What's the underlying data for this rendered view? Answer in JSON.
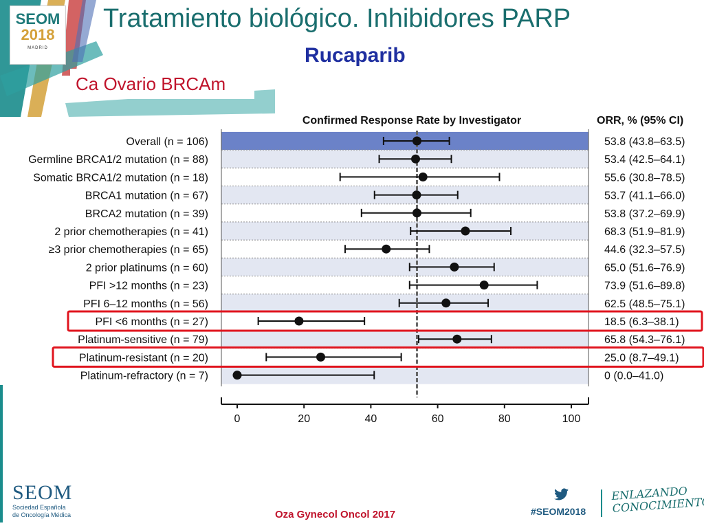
{
  "slide": {
    "title": "Tratamiento biológico. Inhibidores PARP",
    "subtitle": "Rucaparib",
    "tag": "Ca Ovario BRCAm",
    "citation": "Oza Gynecol Oncol 2017"
  },
  "logo": {
    "line1": "SEOM",
    "line2": "2018",
    "city": "MADRID"
  },
  "footer": {
    "org_short": "SEOM",
    "org_line1": "Sociedad Española",
    "org_line2": "de Oncología Médica",
    "hashtag": "#SEOM2018",
    "slogan_line1": "ENLAZANDO",
    "slogan_line2": "CONOCIMIENTO",
    "twitter_icon": "twitter-bird-icon"
  },
  "colors": {
    "teal": "#1a8c8c",
    "title": "#1a6e6e",
    "subtitle": "#1f2fa0",
    "red": "#c0142c",
    "overall_band": "#6b82c8",
    "row_band": "#e3e7f2",
    "highlight": "#e0141e"
  },
  "chart_data": {
    "type": "forest",
    "title": "Confirmed Response Rate by Investigator",
    "right_header": "ORR, % (95% CI)",
    "xlim": [
      0,
      100
    ],
    "xticks": [
      0,
      20,
      40,
      60,
      80,
      100
    ],
    "reference_line": 53.8,
    "rows": [
      {
        "label": "Overall (n = 106)",
        "est": 53.8,
        "lo": 43.8,
        "hi": 63.5,
        "text": "53.8 (43.8–63.5)",
        "highlight": false
      },
      {
        "label": "Germline BRCA1/2 mutation (n = 88)",
        "est": 53.4,
        "lo": 42.5,
        "hi": 64.1,
        "text": "53.4 (42.5–64.1)",
        "highlight": false
      },
      {
        "label": "Somatic BRCA1/2 mutation (n = 18)",
        "est": 55.6,
        "lo": 30.8,
        "hi": 78.5,
        "text": "55.6 (30.8–78.5)",
        "highlight": false
      },
      {
        "label": "BRCA1 mutation (n = 67)",
        "est": 53.7,
        "lo": 41.1,
        "hi": 66.0,
        "text": "53.7 (41.1–66.0)",
        "highlight": false
      },
      {
        "label": "BRCA2 mutation (n = 39)",
        "est": 53.8,
        "lo": 37.2,
        "hi": 69.9,
        "text": "53.8 (37.2–69.9)",
        "highlight": false
      },
      {
        "label": "2 prior chemotherapies (n = 41)",
        "est": 68.3,
        "lo": 51.9,
        "hi": 81.9,
        "text": "68.3 (51.9–81.9)",
        "highlight": false
      },
      {
        "label": "≥3 prior chemotherapies (n = 65)",
        "est": 44.6,
        "lo": 32.3,
        "hi": 57.5,
        "text": "44.6 (32.3–57.5)",
        "highlight": false
      },
      {
        "label": "2 prior platinums (n = 60)",
        "est": 65.0,
        "lo": 51.6,
        "hi": 76.9,
        "text": "65.0 (51.6–76.9)",
        "highlight": false
      },
      {
        "label": "PFI >12 months (n = 23)",
        "est": 73.9,
        "lo": 51.6,
        "hi": 89.8,
        "text": "73.9 (51.6–89.8)",
        "highlight": false
      },
      {
        "label": "PFI 6–12 months (n = 56)",
        "est": 62.5,
        "lo": 48.5,
        "hi": 75.1,
        "text": "62.5 (48.5–75.1)",
        "highlight": false
      },
      {
        "label": "PFI <6 months (n = 27)",
        "est": 18.5,
        "lo": 6.3,
        "hi": 38.1,
        "text": "18.5 (6.3–38.1)",
        "highlight": true
      },
      {
        "label": "Platinum-sensitive (n = 79)",
        "est": 65.8,
        "lo": 54.3,
        "hi": 76.1,
        "text": "65.8 (54.3–76.1)",
        "highlight": false
      },
      {
        "label": "Platinum-resistant (n = 20)",
        "est": 25.0,
        "lo": 8.7,
        "hi": 49.1,
        "text": "25.0 (8.7–49.1)",
        "highlight": true
      },
      {
        "label": "Platinum-refractory (n = 7)",
        "est": 0,
        "lo": 0.0,
        "hi": 41.0,
        "text": "0 (0.0–41.0)",
        "highlight": false
      }
    ]
  }
}
